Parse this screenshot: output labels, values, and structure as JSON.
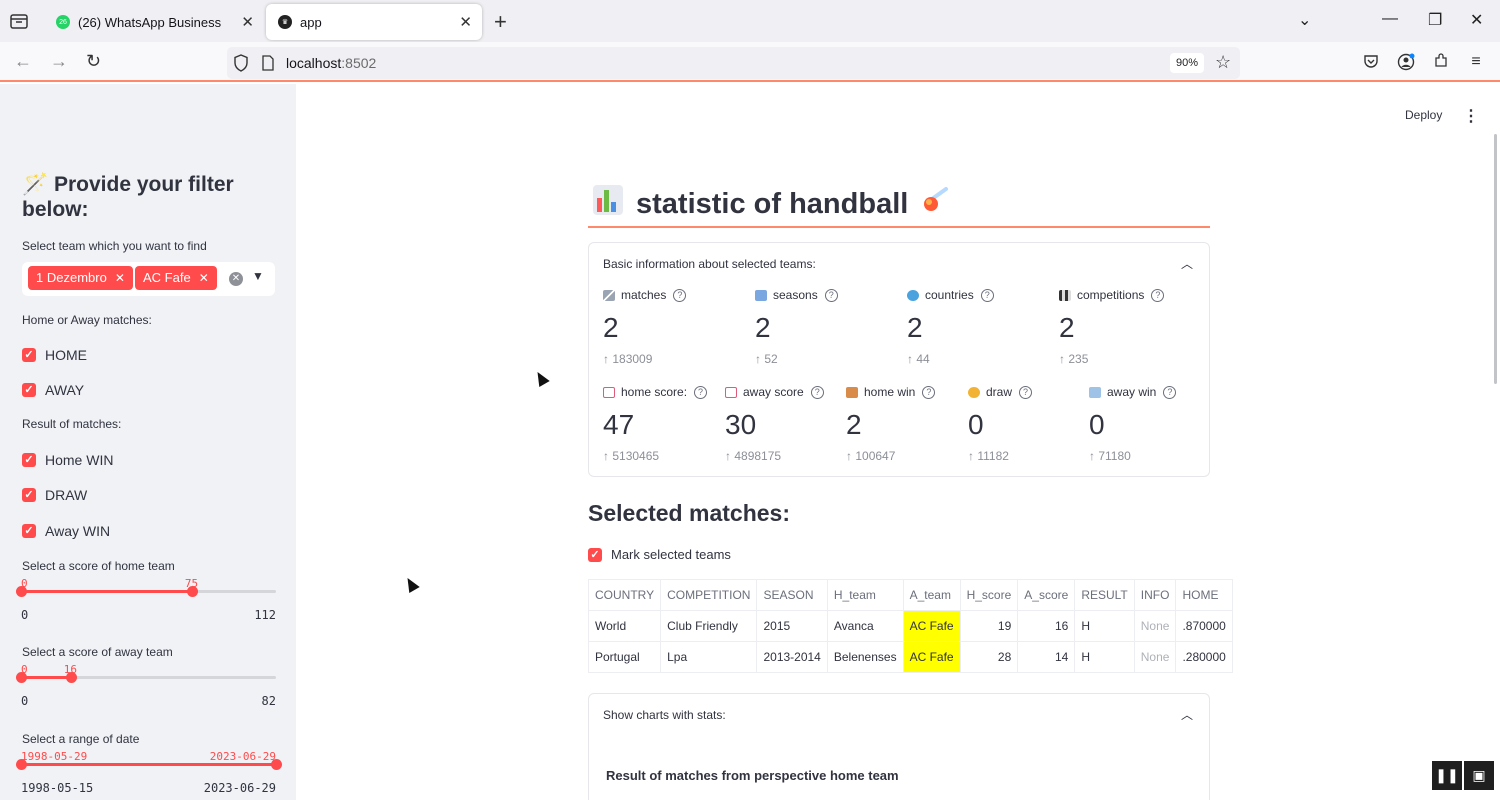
{
  "browser": {
    "tabs": [
      {
        "title": "(26) WhatsApp Business",
        "badge": "26",
        "active": false
      },
      {
        "title": "app",
        "active": true
      }
    ],
    "url_host": "localhost",
    "url_port": ":8502",
    "zoom": "90%",
    "accent": "#ff8a6b"
  },
  "sidebar": {
    "title": "🪄 Provide your filter below:",
    "team_label": "Select team which you want to find",
    "teams": [
      "1 Dezembro",
      "AC Fafe"
    ],
    "home_away_label": "Home or Away matches:",
    "home_label": "HOME",
    "away_label": "AWAY",
    "result_label": "Result of matches:",
    "home_win_label": "Home WIN",
    "draw_label": "DRAW",
    "away_win_label": "Away WIN",
    "home_score_label": "Select a score of home team",
    "home_score": {
      "low": "0",
      "high": "75",
      "min": "0",
      "max": "112",
      "low_frac": 0.0,
      "high_frac": 0.67
    },
    "away_score_label": "Select a score of away team",
    "away_score": {
      "low": "0",
      "high": "16",
      "min": "0",
      "max": "82",
      "low_frac": 0.0,
      "high_frac": 0.195
    },
    "date_label": "Select a range of date",
    "date": {
      "low": "1998-05-29",
      "high": "2023-06-29",
      "min": "1998-05-15",
      "max": "2023-06-29",
      "low_frac": 0.0,
      "high_frac": 1.0
    },
    "accent": "#ff4b4b"
  },
  "header": {
    "deploy": "Deploy"
  },
  "main": {
    "title": "statistic of handball",
    "basic_info_label": "Basic information about selected teams:",
    "metrics_row1": [
      {
        "label": "matches",
        "value": "2",
        "delta": "183009",
        "icon": "crossed-swords-icon"
      },
      {
        "label": "seasons",
        "value": "2",
        "delta": "52",
        "icon": "calendar-icon"
      },
      {
        "label": "countries",
        "value": "2",
        "delta": "44",
        "icon": "globe-icon"
      },
      {
        "label": "competitions",
        "value": "2",
        "delta": "235",
        "icon": "checkered-flag-icon"
      }
    ],
    "metrics_row2": [
      {
        "label": "home score:",
        "value": "47",
        "delta": "5130465",
        "icon": "goal-net-icon"
      },
      {
        "label": "away score",
        "value": "30",
        "delta": "4898175",
        "icon": "goal-net-icon"
      },
      {
        "label": "home win",
        "value": "2",
        "delta": "100647",
        "icon": "house-icon"
      },
      {
        "label": "draw",
        "value": "0",
        "delta": "11182",
        "icon": "handshake-icon"
      },
      {
        "label": "away win",
        "value": "0",
        "delta": "71180",
        "icon": "airplane-icon"
      }
    ],
    "selected_matches_title": "Selected matches:",
    "mark_label": "Mark selected teams",
    "table": {
      "columns": [
        "COUNTRY",
        "COMPETITION",
        "SEASON",
        "H_team",
        "A_team",
        "H_score",
        "A_score",
        "RESULT",
        "INFO",
        "HOME"
      ],
      "rows": [
        [
          "World",
          "Club Friendly",
          "2015",
          "Avanca",
          "AC Fafe",
          "19",
          "16",
          "H",
          "None",
          ".870000"
        ],
        [
          "Portugal",
          "Lpa",
          "2013-2014",
          "Belenenses",
          "AC Fafe",
          "28",
          "14",
          "H",
          "None",
          ".280000"
        ]
      ],
      "highlight_color": "#ffff00"
    },
    "charts_label": "Show charts with stats:",
    "charts_subtitle": "Result of matches from perspective home team"
  }
}
